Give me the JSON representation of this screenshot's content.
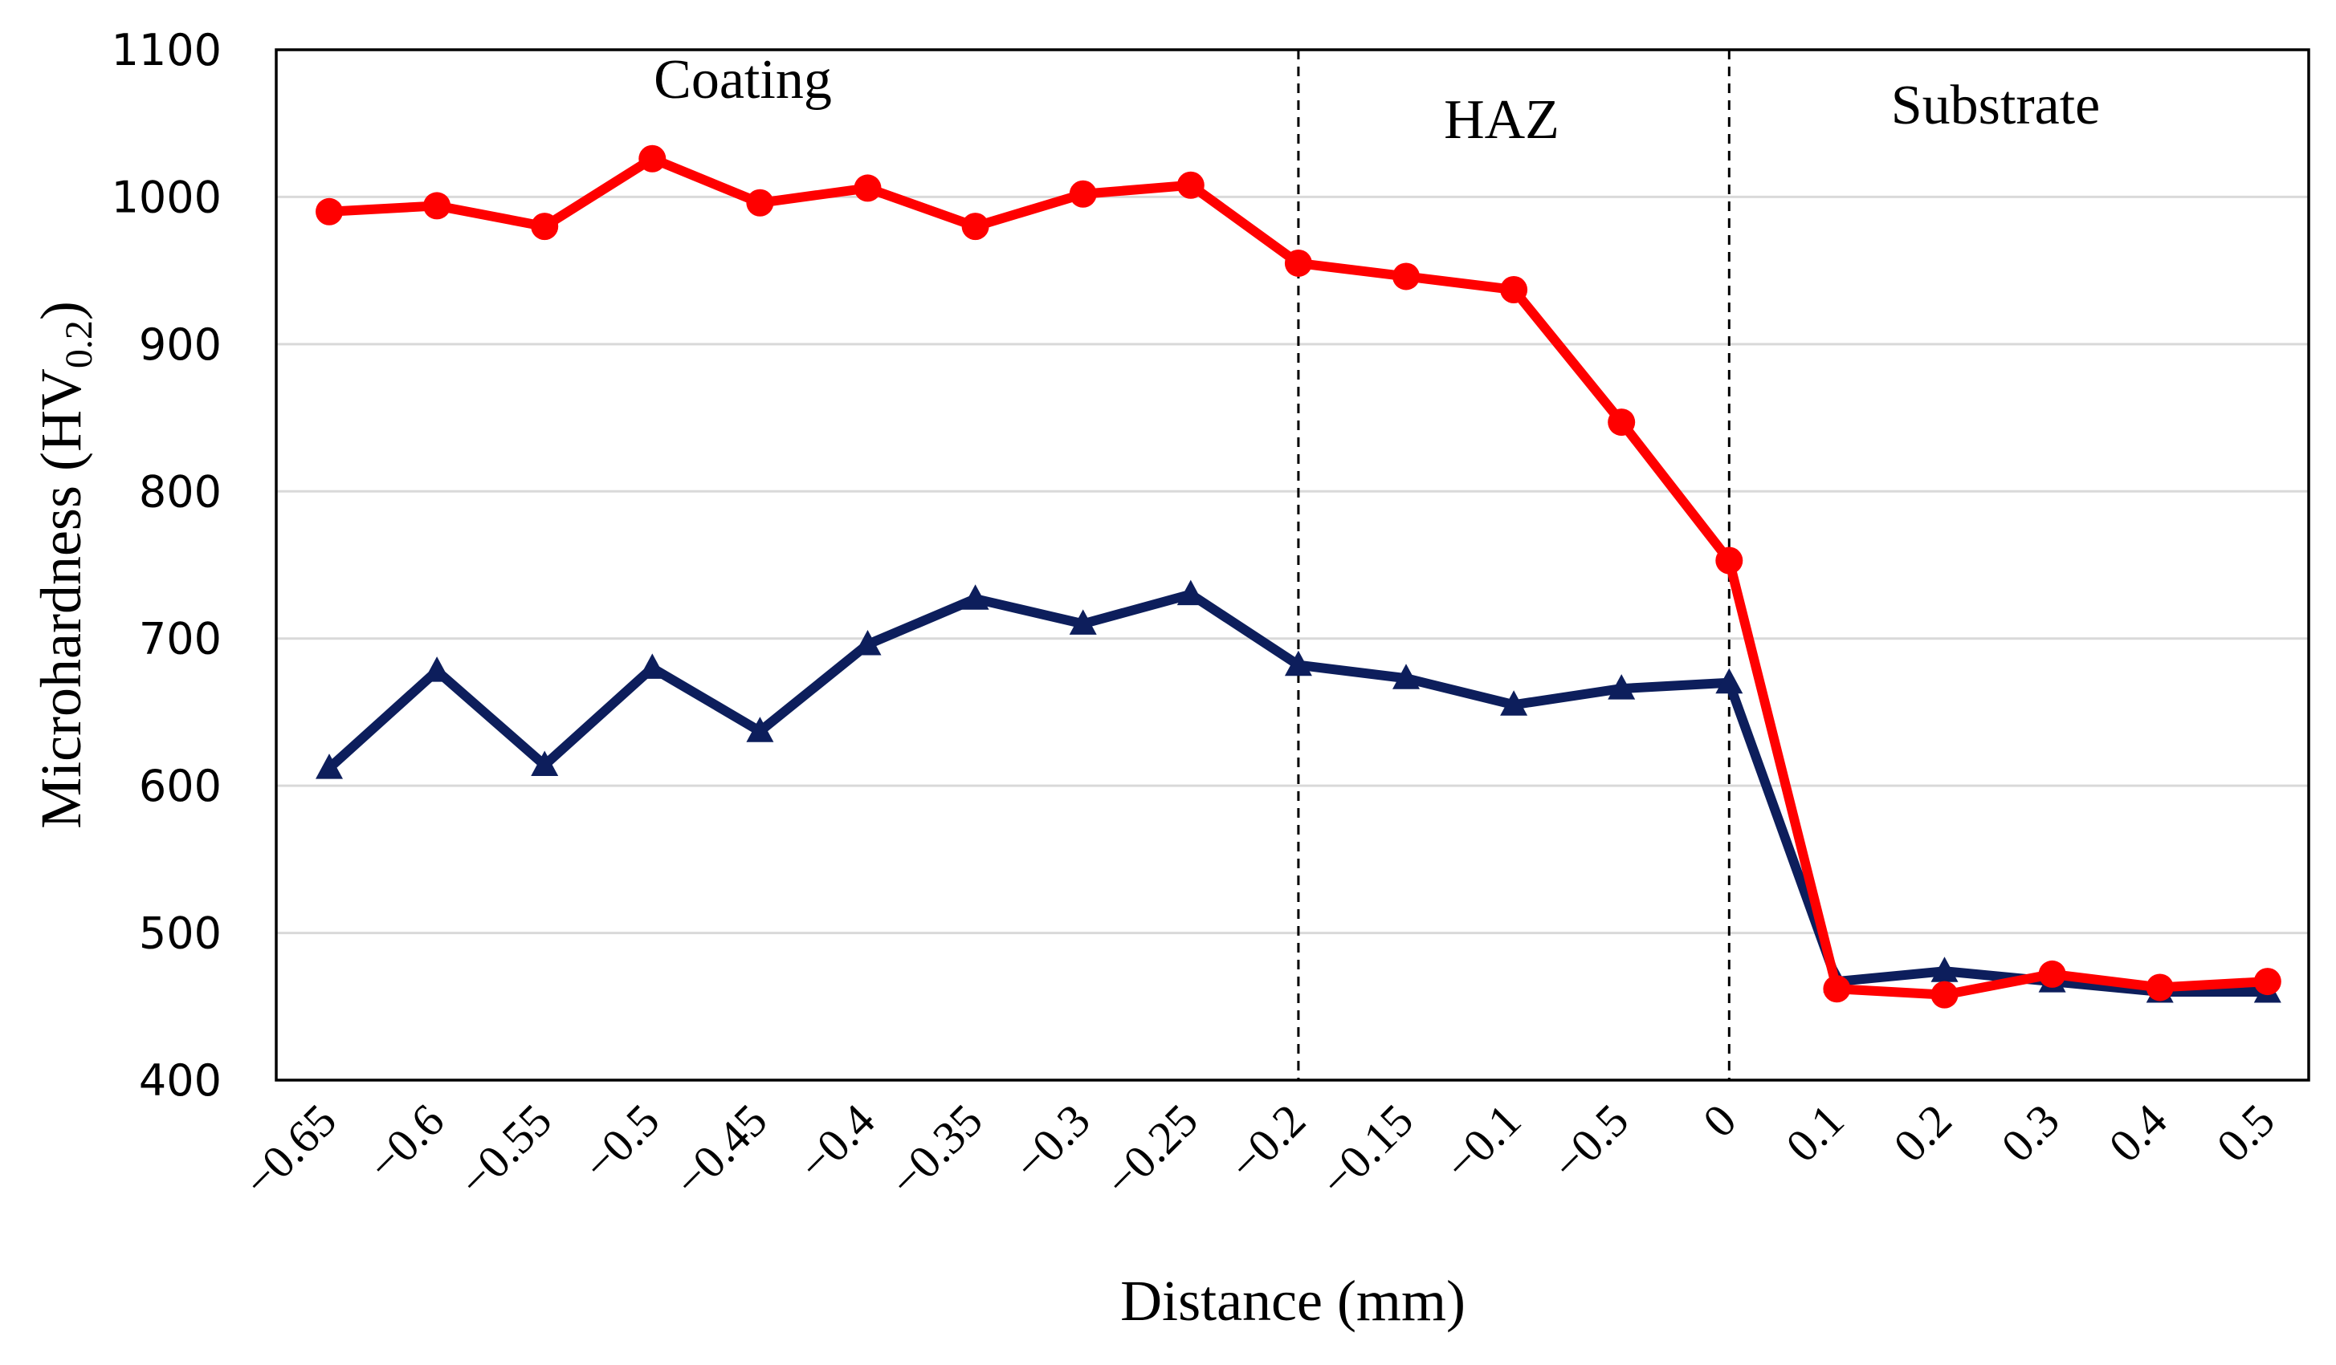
{
  "chart_data": {
    "type": "line",
    "title": "",
    "xlabel": "Distance (mm)",
    "ylabel": {
      "main": "Microhardness (HV",
      "subscript": "0.2",
      "close": ")"
    },
    "ylim": [
      400,
      1100
    ],
    "yticks": [
      "400",
      "500",
      "600",
      "700",
      "800",
      "900",
      "1000",
      "1100"
    ],
    "categories": [
      "−0.65",
      "−0.6",
      "−0.55",
      "−0.5",
      "−0.45",
      "−0.4",
      "−0.35",
      "−0.3",
      "−0.25",
      "−0.2",
      "−0.15",
      "−0.1",
      "−0.5",
      "0",
      "0.1",
      "0.2",
      "0.3",
      "0.4",
      "0.5"
    ],
    "grid": true,
    "legend": "none",
    "regions": [
      {
        "label": "Coating",
        "from_index": 0,
        "to_index": 9
      },
      {
        "label": "HAZ",
        "from_index": 9,
        "to_index": 13
      },
      {
        "label": "Substrate",
        "from_index": 13,
        "to_index": 18
      }
    ],
    "region_boundaries": [
      {
        "at_category": "−0.2"
      },
      {
        "at_category": "0"
      }
    ],
    "series": [
      {
        "name": "series-navy",
        "color": "#0d1e5c",
        "marker": "triangle",
        "values": [
          612,
          678,
          614,
          680,
          637,
          696,
          727,
          710,
          730,
          682,
          673,
          655,
          666,
          670,
          467,
          474,
          467,
          460,
          460
        ]
      },
      {
        "name": "series-red",
        "color": "#ff0000",
        "marker": "circle",
        "values": [
          990,
          994,
          980,
          1026,
          996,
          1006,
          980,
          1002,
          1008,
          955,
          946,
          937,
          847,
          753,
          462,
          458,
          472,
          463,
          467
        ]
      }
    ]
  }
}
